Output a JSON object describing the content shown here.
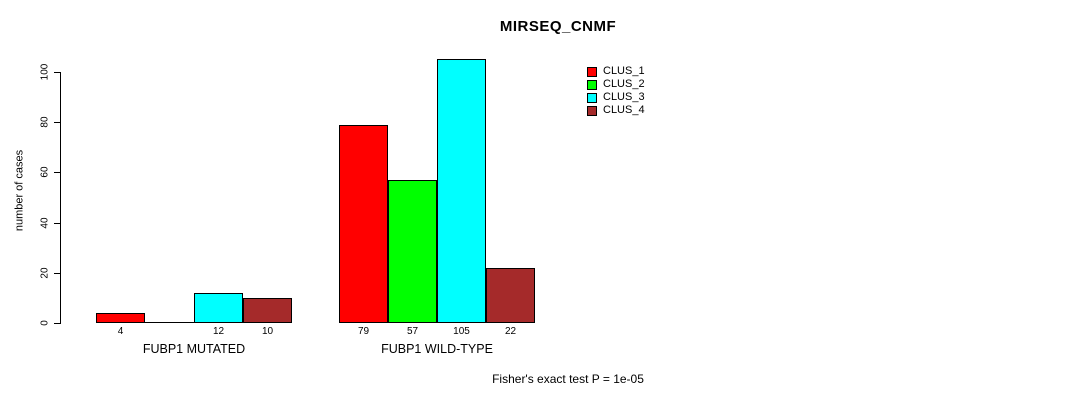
{
  "chart_data": {
    "type": "bar",
    "title": "MIRSEQ_CNMF",
    "ylabel": "number of cases",
    "xlabel": "",
    "categories": [
      "FUBP1 MUTATED",
      "FUBP1 WILD-TYPE"
    ],
    "series": [
      {
        "name": "CLUS_1",
        "color": "#FF0000",
        "values": [
          4,
          79
        ]
      },
      {
        "name": "CLUS_2",
        "color": "#00FF00",
        "values": [
          0,
          57
        ]
      },
      {
        "name": "CLUS_3",
        "color": "#00FFFF",
        "values": [
          12,
          105
        ]
      },
      {
        "name": "CLUS_4",
        "color": "#A52A2A",
        "values": [
          10,
          22
        ]
      }
    ],
    "yticks": [
      0,
      20,
      40,
      60,
      80,
      100
    ],
    "ylim": [
      0,
      105
    ],
    "bar_value_labels": [
      [
        "4",
        "",
        "12",
        "10"
      ],
      [
        "79",
        "57",
        "105",
        "22"
      ]
    ],
    "legend_entries": [
      "CLUS_1",
      "CLUS_2",
      "CLUS_3",
      "CLUS_4"
    ],
    "legend_position": "right-of-plot",
    "grid": false,
    "annotation": "Fisher's exact test P = 1e-05"
  }
}
